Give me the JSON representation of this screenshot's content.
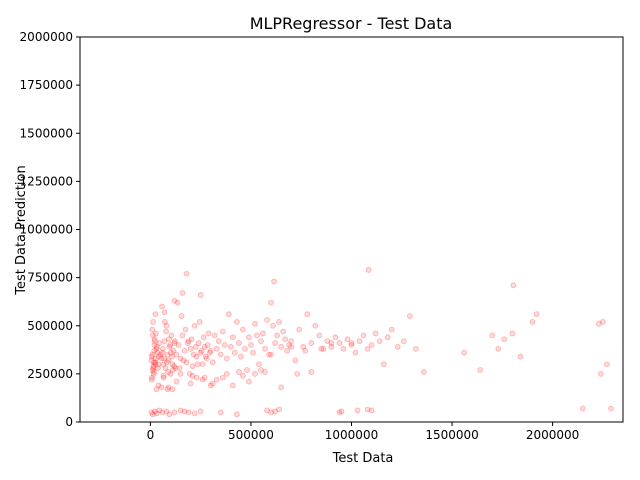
{
  "chart_data": {
    "type": "scatter",
    "title": "MLPRegressor - Test Data",
    "xlabel": "Test Data",
    "ylabel": "Test Data Prediction",
    "xlim": [
      -350000,
      2350000
    ],
    "ylim": [
      0,
      2000000
    ],
    "xticks": [
      {
        "value": 0,
        "label": "0"
      },
      {
        "value": 500000,
        "label": "500000"
      },
      {
        "value": 1000000,
        "label": "1000000"
      },
      {
        "value": 1500000,
        "label": "1500000"
      },
      {
        "value": 2000000,
        "label": "2000000"
      }
    ],
    "yticks": [
      {
        "value": 0,
        "label": "0"
      },
      {
        "value": 250000,
        "label": "250000"
      },
      {
        "value": 500000,
        "label": "500000"
      },
      {
        "value": 750000,
        "label": "750000"
      },
      {
        "value": 1000000,
        "label": "1000000"
      },
      {
        "value": 1250000,
        "label": "1250000"
      },
      {
        "value": 1500000,
        "label": "1500000"
      },
      {
        "value": 1750000,
        "label": "1750000"
      },
      {
        "value": 2000000,
        "label": "2000000"
      }
    ],
    "grid": false,
    "legend": "none",
    "marker_color": "#ff0000",
    "marker_alpha": 0.15,
    "series": [
      {
        "x": [
          5000,
          10000,
          15000,
          20000,
          8000,
          12000,
          25000,
          30000,
          18000,
          6000,
          14000,
          22000,
          35000,
          40000,
          9000,
          16000,
          28000,
          33000,
          11000,
          19000,
          45000,
          50000,
          24000,
          7000,
          13000,
          38000,
          42000,
          27000,
          17000,
          21000,
          55000,
          60000,
          65000,
          70000,
          75000,
          80000,
          85000,
          90000,
          95000,
          100000,
          105000,
          110000,
          115000,
          120000,
          125000,
          58000,
          68000,
          78000,
          88000,
          98000,
          108000,
          118000,
          62000,
          72000,
          82000,
          92000,
          102000,
          112000,
          122000,
          66000,
          130000,
          140000,
          150000,
          160000,
          170000,
          180000,
          190000,
          200000,
          210000,
          220000,
          230000,
          240000,
          250000,
          260000,
          270000,
          280000,
          290000,
          300000,
          135000,
          145000,
          155000,
          165000,
          175000,
          185000,
          195000,
          205000,
          215000,
          225000,
          235000,
          245000,
          255000,
          265000,
          275000,
          285000,
          295000,
          310000,
          320000,
          330000,
          340000,
          350000,
          360000,
          370000,
          380000,
          390000,
          400000,
          410000,
          420000,
          430000,
          440000,
          450000,
          460000,
          470000,
          480000,
          490000,
          500000,
          510000,
          520000,
          530000,
          540000,
          550000,
          560000,
          570000,
          580000,
          590000,
          600000,
          610000,
          620000,
          630000,
          640000,
          650000,
          660000,
          670000,
          680000,
          690000,
          700000,
          720000,
          740000,
          760000,
          780000,
          800000,
          820000,
          840000,
          860000,
          880000,
          900000,
          920000,
          940000,
          960000,
          980000,
          1000000,
          1020000,
          1040000,
          1060000,
          1080000,
          1100000,
          1120000,
          1140000,
          1160000,
          1180000,
          1200000,
          1230000,
          1260000,
          1290000,
          1320000,
          1360000,
          1560000,
          1640000,
          1700000,
          1730000,
          1760000,
          1800000,
          1840000,
          1900000,
          1920000,
          2150000,
          2240000,
          2250000,
          2270000,
          2290000,
          2230000,
          5000,
          12000,
          22000,
          32000,
          45000,
          60000,
          80000,
          95000,
          120000,
          150000,
          170000,
          190000,
          220000,
          250000,
          350000,
          430000,
          580000,
          600000,
          620000,
          640000,
          940000,
          950000,
          1030000,
          1080000,
          1100000,
          180000,
          615000,
          1085000,
          1805000,
          70000,
          160000,
          120000,
          250000,
          270000,
          90000,
          30000,
          200000,
          300000,
          210000,
          110000,
          40000,
          55000,
          130000,
          230000,
          260000,
          150000,
          85000,
          25000,
          65000,
          310000,
          330000,
          360000,
          380000,
          410000,
          440000,
          460000,
          490000,
          520000,
          550000,
          570000,
          600000,
          650000,
          700000,
          730000,
          770000,
          800000,
          850000,
          900000,
          1000000
        ],
        "y": [
          320000,
          350000,
          280000,
          400000,
          230000,
          450000,
          310000,
          380000,
          260000,
          340000,
          290000,
          420000,
          360000,
          300000,
          480000,
          250000,
          330000,
          390000,
          270000,
          370000,
          410000,
          350000,
          300000,
          220000,
          520000,
          280000,
          340000,
          460000,
          310000,
          430000,
          330000,
          360000,
          300000,
          420000,
          280000,
          500000,
          350000,
          320000,
          390000,
          250000,
          450000,
          300000,
          370000,
          410000,
          280000,
          600000,
          330000,
          470000,
          260000,
          400000,
          340000,
          290000,
          380000,
          520000,
          310000,
          430000,
          360000,
          270000,
          420000,
          230000,
          350000,
          400000,
          330000,
          450000,
          370000,
          310000,
          420000,
          380000,
          290000,
          500000,
          340000,
          410000,
          360000,
          300000,
          390000,
          330000,
          460000,
          370000,
          620000,
          280000,
          550000,
          320000,
          480000,
          410000,
          250000,
          430000,
          350000,
          390000,
          300000,
          520000,
          370000,
          440000,
          340000,
          400000,
          360000,
          310000,
          450000,
          380000,
          420000,
          350000,
          470000,
          400000,
          330000,
          560000,
          390000,
          440000,
          360000,
          520000,
          410000,
          340000,
          480000,
          380000,
          270000,
          440000,
          400000,
          360000,
          510000,
          450000,
          300000,
          420000,
          460000,
          380000,
          530000,
          350000,
          620000,
          500000,
          410000,
          450000,
          520000,
          390000,
          470000,
          430000,
          370000,
          400000,
          420000,
          320000,
          480000,
          390000,
          560000,
          410000,
          500000,
          450000,
          380000,
          420000,
          390000,
          440000,
          410000,
          380000,
          430000,
          400000,
          360000,
          420000,
          450000,
          380000,
          400000,
          460000,
          420000,
          300000,
          440000,
          480000,
          390000,
          420000,
          550000,
          380000,
          260000,
          360000,
          270000,
          450000,
          380000,
          430000,
          460000,
          340000,
          520000,
          560000,
          70000,
          250000,
          520000,
          300000,
          70000,
          510000,
          50000,
          40000,
          55000,
          45000,
          60000,
          50000,
          55000,
          40000,
          50000,
          60000,
          55000,
          50000,
          45000,
          55000,
          50000,
          40000,
          60000,
          50000,
          55000,
          65000,
          50000,
          55000,
          60000,
          65000,
          60000,
          770000,
          730000,
          790000,
          710000,
          570000,
          670000,
          630000,
          660000,
          230000,
          180000,
          170000,
          200000,
          190000,
          240000,
          170000,
          190000,
          180000,
          210000,
          230000,
          220000,
          250000,
          170000,
          560000,
          240000,
          200000,
          220000,
          230000,
          250000,
          190000,
          260000,
          240000,
          210000,
          250000,
          270000,
          260000,
          350000,
          180000,
          390000,
          250000,
          370000,
          260000,
          380000,
          410000,
          410000
        ]
      }
    ]
  }
}
